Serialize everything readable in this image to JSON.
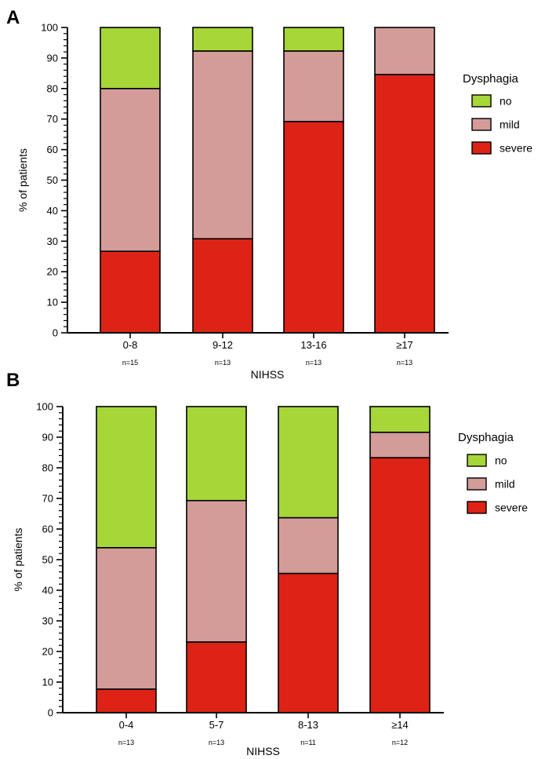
{
  "colors": {
    "no": "#a6d637",
    "mild": "#d39c98",
    "severe": "#dc2315"
  },
  "chart_data": [
    {
      "panel": "A",
      "type": "bar",
      "stacked": true,
      "categories": [
        "0-8",
        "9-12",
        "13-16",
        "≥17"
      ],
      "n_labels": [
        "n=15",
        "n=13",
        "n=13",
        "n=13"
      ],
      "series": [
        {
          "name": "severe",
          "values": [
            26.7,
            30.8,
            69.2,
            84.6
          ]
        },
        {
          "name": "mild",
          "values": [
            53.3,
            61.5,
            23.1,
            15.4
          ]
        },
        {
          "name": "no",
          "values": [
            20.0,
            7.7,
            7.7,
            0
          ]
        }
      ],
      "xlabel": "NIHSS",
      "ylabel": "% of patients",
      "ylim": [
        0,
        100
      ],
      "yticks": [
        0,
        10,
        20,
        30,
        40,
        50,
        60,
        70,
        80,
        90,
        100
      ],
      "legend_title": "Dysphagia",
      "legend_items": [
        "no",
        "mild",
        "severe"
      ],
      "legend_position": "right"
    },
    {
      "panel": "B",
      "type": "bar",
      "stacked": true,
      "categories": [
        "0-4",
        "5-7",
        "8-13",
        "≥14"
      ],
      "n_labels": [
        "n=13",
        "n=13",
        "n=11",
        "n=12"
      ],
      "series": [
        {
          "name": "severe",
          "values": [
            7.7,
            23.1,
            45.5,
            83.3
          ]
        },
        {
          "name": "mild",
          "values": [
            46.2,
            46.2,
            18.2,
            8.3
          ]
        },
        {
          "name": "no",
          "values": [
            46.1,
            30.7,
            36.3,
            8.4
          ]
        }
      ],
      "xlabel": "NIHSS",
      "ylabel": "% of patients",
      "ylim": [
        0,
        100
      ],
      "yticks": [
        0,
        10,
        20,
        30,
        40,
        50,
        60,
        70,
        80,
        90,
        100
      ],
      "legend_title": "Dysphagia",
      "legend_items": [
        "no",
        "mild",
        "severe"
      ],
      "legend_position": "right"
    }
  ]
}
